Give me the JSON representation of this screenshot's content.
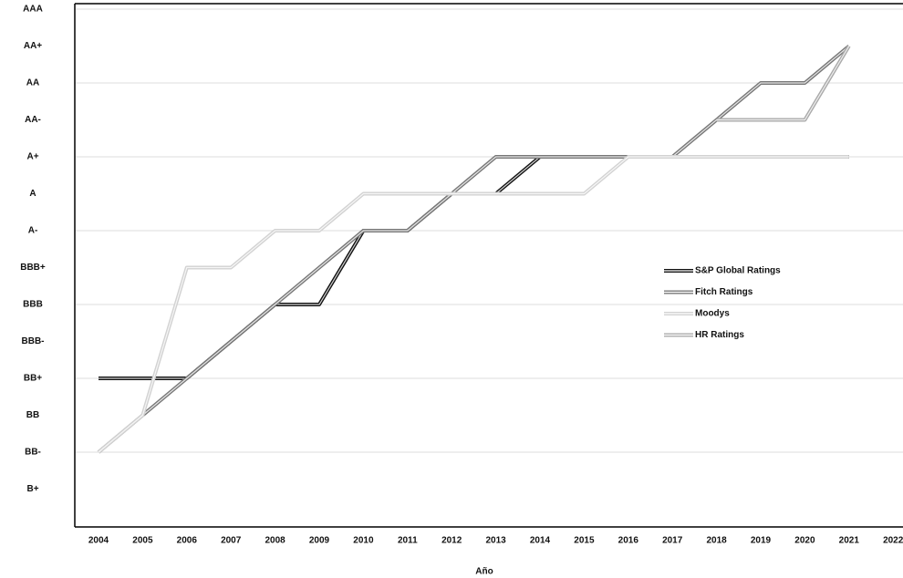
{
  "chart_data": {
    "type": "line",
    "x_label": "Año",
    "categories": [
      "2004",
      "2005",
      "2006",
      "2007",
      "2008",
      "2009",
      "2010",
      "2011",
      "2012",
      "2013",
      "2014",
      "2015",
      "2016",
      "2017",
      "2018",
      "2019",
      "2020",
      "2021",
      "2022"
    ],
    "ylim": [
      0,
      14
    ],
    "yticks": [
      {
        "value": 1,
        "label": "B+"
      },
      {
        "value": 2,
        "label": "BB-"
      },
      {
        "value": 3,
        "label": "BB"
      },
      {
        "value": 4,
        "label": "BB+"
      },
      {
        "value": 5,
        "label": "BBB-"
      },
      {
        "value": 6,
        "label": "BBB"
      },
      {
        "value": 7,
        "label": "BBB+"
      },
      {
        "value": 8,
        "label": "A-"
      },
      {
        "value": 9,
        "label": "A"
      },
      {
        "value": 10,
        "label": "A+"
      },
      {
        "value": 11,
        "label": "AA-"
      },
      {
        "value": 12,
        "label": "AA"
      },
      {
        "value": 13,
        "label": "AA+"
      },
      {
        "value": 14,
        "label": "AAA"
      }
    ],
    "grid": true,
    "series": [
      {
        "name": "S&P Global Ratings",
        "color": "#111111",
        "values": [
          4,
          4,
          4,
          5,
          6,
          6,
          8,
          8,
          9,
          9,
          10,
          10,
          10,
          10,
          10,
          10,
          10,
          10,
          null
        ]
      },
      {
        "name": "Fitch Ratings",
        "color": "#777777",
        "values": [
          2,
          3,
          4,
          5,
          6,
          7,
          8,
          8,
          9,
          10,
          10,
          10,
          10,
          10,
          11,
          12,
          12,
          13,
          null
        ]
      },
      {
        "name": "Moodys",
        "color": "#d2d2d2",
        "values": [
          2,
          3,
          7,
          7,
          8,
          8,
          9,
          9,
          9,
          9,
          9,
          9,
          10,
          10,
          10,
          10,
          10,
          10,
          null
        ]
      },
      {
        "name": "HR Ratings",
        "color": "#aaaaaa",
        "values": [
          null,
          null,
          null,
          null,
          null,
          null,
          null,
          null,
          null,
          null,
          null,
          null,
          null,
          null,
          11,
          11,
          11,
          13,
          null
        ]
      }
    ]
  }
}
